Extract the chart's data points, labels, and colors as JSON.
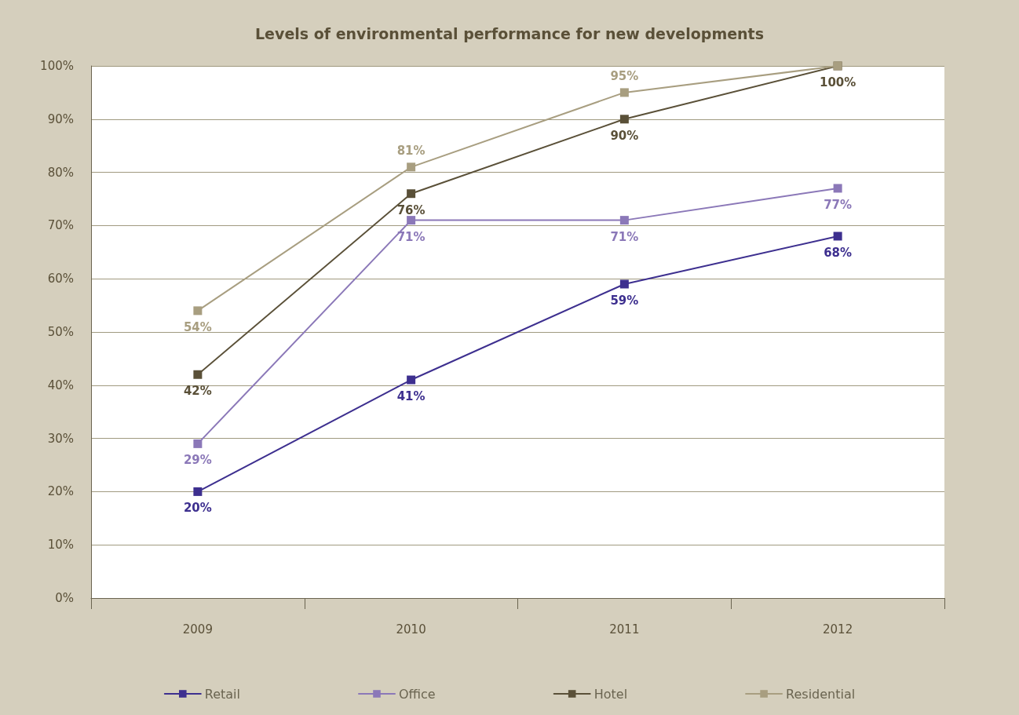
{
  "chart_data": {
    "type": "line",
    "title": "Levels of environmental performance for new developments",
    "categories": [
      "2009",
      "2010",
      "2011",
      "2012"
    ],
    "series": [
      {
        "name": "Retail",
        "color": "#3d2f8f",
        "values": [
          20,
          41,
          59,
          68
        ],
        "value_labels": [
          "20%",
          "41%",
          "59%",
          "68%"
        ]
      },
      {
        "name": "Office",
        "color": "#8b78b8",
        "values": [
          29,
          71,
          71,
          77
        ],
        "value_labels": [
          "29%",
          "71%",
          "71%",
          "77%"
        ]
      },
      {
        "name": "Hotel",
        "color": "#5a5038",
        "values": [
          42,
          76,
          90,
          100
        ],
        "value_labels": [
          "42%",
          "76%",
          "90%",
          "100%"
        ]
      },
      {
        "name": "Residential",
        "color": "#a89e80",
        "values": [
          54,
          81,
          95,
          100
        ],
        "value_labels": [
          "54%",
          "81%",
          "95%",
          null
        ]
      }
    ],
    "ylim": [
      0,
      100
    ],
    "yticks": [
      {
        "value": 0,
        "label": "0%"
      },
      {
        "value": 10,
        "label": "10%"
      },
      {
        "value": 20,
        "label": "20%"
      },
      {
        "value": 30,
        "label": "30%"
      },
      {
        "value": 40,
        "label": "40%"
      },
      {
        "value": 50,
        "label": "50%"
      },
      {
        "value": 60,
        "label": "60%"
      },
      {
        "value": 70,
        "label": "70%"
      },
      {
        "value": 80,
        "label": "80%"
      },
      {
        "value": 90,
        "label": "90%"
      },
      {
        "value": 100,
        "label": "100%"
      }
    ],
    "grid": "y",
    "legend": "bottom",
    "marker": "square",
    "line_style": "solid"
  }
}
